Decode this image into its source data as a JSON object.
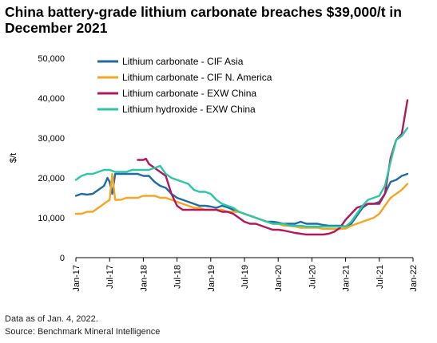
{
  "title": "China battery-grade lithium carbonate breaches $39,000/t in December 2021",
  "notes": {
    "date": "Data as of Jan. 4, 2022.",
    "source": "Source: Benchmark Mineral Intelligence"
  },
  "chart_data": {
    "type": "line",
    "ylabel": "$/t",
    "xlabel": "",
    "ylim": [
      0,
      50000
    ],
    "yticks": [
      0,
      10000,
      20000,
      30000,
      40000,
      50000
    ],
    "ytick_labels": [
      "0",
      "10,000",
      "20,000",
      "30,000",
      "40,000",
      "50,000"
    ],
    "xticks": [
      "2017-01",
      "2017-07",
      "2018-01",
      "2018-07",
      "2019-01",
      "2019-07",
      "2020-01",
      "2020-07",
      "2021-01",
      "2021-07",
      "2022-01"
    ],
    "xtick_labels": [
      "Jan-17",
      "Jul-17",
      "Jan-18",
      "Jul-18",
      "Jan-19",
      "Jul-19",
      "Jan-20",
      "Jul-20",
      "Jan-21",
      "Jul-21",
      "Jan-22"
    ],
    "xlim": [
      "2017-01",
      "2022-01"
    ],
    "grid": false,
    "legend": "top-left",
    "series": [
      {
        "name": "Lithium carbonate - CIF Asia",
        "color": "#1f6ba5",
        "points": [
          [
            "2017-01",
            15500
          ],
          [
            "2017-02",
            16000
          ],
          [
            "2017-03",
            15800
          ],
          [
            "2017-04",
            16000
          ],
          [
            "2017-05",
            17000
          ],
          [
            "2017-06",
            18000
          ],
          [
            "2017-06-20",
            20000
          ],
          [
            "2017-07",
            19000
          ],
          [
            "2017-07-15",
            16000
          ],
          [
            "2017-08",
            21000
          ],
          [
            "2017-09",
            21000
          ],
          [
            "2017-10",
            21000
          ],
          [
            "2017-11",
            21000
          ],
          [
            "2017-12",
            21000
          ],
          [
            "2018-01",
            20500
          ],
          [
            "2018-02",
            20500
          ],
          [
            "2018-03",
            19000
          ],
          [
            "2018-04",
            18000
          ],
          [
            "2018-05",
            17500
          ],
          [
            "2018-06",
            16000
          ],
          [
            "2018-07",
            15000
          ],
          [
            "2018-08",
            14500
          ],
          [
            "2018-09",
            14000
          ],
          [
            "2018-10",
            13500
          ],
          [
            "2018-11",
            13000
          ],
          [
            "2018-12",
            13000
          ],
          [
            "2019-01",
            12800
          ],
          [
            "2019-02",
            12500
          ],
          [
            "2019-03",
            13000
          ],
          [
            "2019-04",
            12600
          ],
          [
            "2019-05",
            12000
          ],
          [
            "2019-06",
            11500
          ],
          [
            "2019-07",
            11000
          ],
          [
            "2019-08",
            10500
          ],
          [
            "2019-09",
            10000
          ],
          [
            "2019-10",
            9500
          ],
          [
            "2019-11",
            9000
          ],
          [
            "2019-12",
            9000
          ],
          [
            "2020-01",
            8800
          ],
          [
            "2020-02",
            8500
          ],
          [
            "2020-03",
            8500
          ],
          [
            "2020-04",
            8500
          ],
          [
            "2020-05",
            9000
          ],
          [
            "2020-06",
            8500
          ],
          [
            "2020-07",
            8500
          ],
          [
            "2020-08",
            8500
          ],
          [
            "2020-09",
            8200
          ],
          [
            "2020-10",
            8000
          ],
          [
            "2020-11",
            8000
          ],
          [
            "2020-12",
            8000
          ],
          [
            "2021-01",
            7800
          ],
          [
            "2021-02",
            8500
          ],
          [
            "2021-03",
            10500
          ],
          [
            "2021-04",
            12500
          ],
          [
            "2021-05",
            13500
          ],
          [
            "2021-06",
            13500
          ],
          [
            "2021-07",
            14000
          ],
          [
            "2021-08",
            16000
          ],
          [
            "2021-09",
            19000
          ],
          [
            "2021-10",
            19500
          ],
          [
            "2021-11",
            20500
          ],
          [
            "2021-12",
            21000
          ]
        ]
      },
      {
        "name": "Lithium carbonate - CIF N. America",
        "color": "#f5a623",
        "points": [
          [
            "2017-01",
            11000
          ],
          [
            "2017-02",
            11000
          ],
          [
            "2017-03",
            11500
          ],
          [
            "2017-04",
            11500
          ],
          [
            "2017-05",
            12500
          ],
          [
            "2017-06",
            13500
          ],
          [
            "2017-07",
            14500
          ],
          [
            "2017-07-15",
            21000
          ],
          [
            "2017-08",
            14500
          ],
          [
            "2017-09",
            14500
          ],
          [
            "2017-10",
            15000
          ],
          [
            "2017-11",
            15000
          ],
          [
            "2017-12",
            15000
          ],
          [
            "2018-01",
            15500
          ],
          [
            "2018-02",
            15500
          ],
          [
            "2018-03",
            15500
          ],
          [
            "2018-04",
            15000
          ],
          [
            "2018-05",
            15000
          ],
          [
            "2018-06",
            14500
          ],
          [
            "2018-07",
            14000
          ],
          [
            "2018-08",
            13500
          ],
          [
            "2018-09",
            13000
          ],
          [
            "2018-10",
            12500
          ],
          [
            "2018-11",
            12500
          ],
          [
            "2018-12",
            12000
          ],
          [
            "2019-01",
            12000
          ],
          [
            "2019-02",
            12000
          ],
          [
            "2019-03",
            12000
          ],
          [
            "2019-04",
            11500
          ],
          [
            "2019-05",
            11500
          ],
          [
            "2019-06",
            11500
          ],
          [
            "2019-07",
            11000
          ],
          [
            "2019-08",
            10500
          ],
          [
            "2019-09",
            10000
          ],
          [
            "2019-10",
            9500
          ],
          [
            "2019-11",
            9000
          ],
          [
            "2019-12",
            8500
          ],
          [
            "2020-01",
            8500
          ],
          [
            "2020-02",
            8000
          ],
          [
            "2020-03",
            8000
          ],
          [
            "2020-04",
            7800
          ],
          [
            "2020-05",
            7500
          ],
          [
            "2020-06",
            7500
          ],
          [
            "2020-07",
            7500
          ],
          [
            "2020-08",
            7500
          ],
          [
            "2020-09",
            7200
          ],
          [
            "2020-10",
            7200
          ],
          [
            "2020-11",
            7200
          ],
          [
            "2020-12",
            7200
          ],
          [
            "2021-01",
            7300
          ],
          [
            "2021-02",
            8000
          ],
          [
            "2021-03",
            8500
          ],
          [
            "2021-04",
            9000
          ],
          [
            "2021-05",
            9500
          ],
          [
            "2021-06",
            10000
          ],
          [
            "2021-07",
            11000
          ],
          [
            "2021-08",
            13000
          ],
          [
            "2021-09",
            15000
          ],
          [
            "2021-10",
            16000
          ],
          [
            "2021-11",
            17000
          ],
          [
            "2021-12",
            18500
          ]
        ]
      },
      {
        "name": "Lithium carbonate - EXW China",
        "color": "#b5175d",
        "points": [
          [
            "2017-12",
            24500
          ],
          [
            "2018-01",
            24500
          ],
          [
            "2018-01-15",
            24800
          ],
          [
            "2018-02",
            23500
          ],
          [
            "2018-03",
            22500
          ],
          [
            "2018-04",
            21500
          ],
          [
            "2018-05",
            20500
          ],
          [
            "2018-06",
            16000
          ],
          [
            "2018-07",
            13000
          ],
          [
            "2018-08",
            12000
          ],
          [
            "2018-09",
            12000
          ],
          [
            "2018-10",
            12000
          ],
          [
            "2018-11",
            12000
          ],
          [
            "2018-12",
            12000
          ],
          [
            "2019-01",
            12000
          ],
          [
            "2019-02",
            12000
          ],
          [
            "2019-03",
            11500
          ],
          [
            "2019-04",
            11500
          ],
          [
            "2019-05",
            11000
          ],
          [
            "2019-06",
            10000
          ],
          [
            "2019-07",
            9000
          ],
          [
            "2019-08",
            8500
          ],
          [
            "2019-09",
            8500
          ],
          [
            "2019-10",
            8000
          ],
          [
            "2019-11",
            7500
          ],
          [
            "2019-12",
            7000
          ],
          [
            "2020-01",
            7000
          ],
          [
            "2020-02",
            6800
          ],
          [
            "2020-03",
            6500
          ],
          [
            "2020-04",
            6200
          ],
          [
            "2020-05",
            6000
          ],
          [
            "2020-06",
            5800
          ],
          [
            "2020-07",
            5800
          ],
          [
            "2020-08",
            5800
          ],
          [
            "2020-09",
            5800
          ],
          [
            "2020-10",
            6000
          ],
          [
            "2020-11",
            6500
          ],
          [
            "2020-12",
            7500
          ],
          [
            "2021-01",
            9500
          ],
          [
            "2021-02",
            11000
          ],
          [
            "2021-03",
            12500
          ],
          [
            "2021-04",
            13000
          ],
          [
            "2021-05",
            13500
          ],
          [
            "2021-06",
            13500
          ],
          [
            "2021-07",
            13500
          ],
          [
            "2021-08",
            16000
          ],
          [
            "2021-09",
            25000
          ],
          [
            "2021-10",
            29500
          ],
          [
            "2021-11",
            31000
          ],
          [
            "2021-12",
            39500
          ]
        ]
      },
      {
        "name": "Lithium hydroxide - EXW China",
        "color": "#2dc7a6",
        "points": [
          [
            "2017-01",
            19500
          ],
          [
            "2017-02",
            20500
          ],
          [
            "2017-03",
            21000
          ],
          [
            "2017-04",
            21000
          ],
          [
            "2017-05",
            21500
          ],
          [
            "2017-06",
            22000
          ],
          [
            "2017-07",
            22000
          ],
          [
            "2017-08",
            21500
          ],
          [
            "2017-09",
            21500
          ],
          [
            "2017-10",
            21500
          ],
          [
            "2017-11",
            22000
          ],
          [
            "2017-12",
            22000
          ],
          [
            "2018-01",
            22000
          ],
          [
            "2018-02",
            22000
          ],
          [
            "2018-03",
            22500
          ],
          [
            "2018-04",
            23000
          ],
          [
            "2018-05",
            21000
          ],
          [
            "2018-06",
            20000
          ],
          [
            "2018-07",
            19500
          ],
          [
            "2018-08",
            19000
          ],
          [
            "2018-09",
            18500
          ],
          [
            "2018-10",
            17000
          ],
          [
            "2018-11",
            16500
          ],
          [
            "2018-12",
            16500
          ],
          [
            "2019-01",
            16000
          ],
          [
            "2019-02",
            14500
          ],
          [
            "2019-03",
            13500
          ],
          [
            "2019-04",
            13000
          ],
          [
            "2019-05",
            12500
          ],
          [
            "2019-06",
            11500
          ],
          [
            "2019-07",
            11000
          ],
          [
            "2019-08",
            10500
          ],
          [
            "2019-09",
            10000
          ],
          [
            "2019-10",
            9500
          ],
          [
            "2019-11",
            9000
          ],
          [
            "2019-12",
            8500
          ],
          [
            "2020-01",
            8500
          ],
          [
            "2020-02",
            8500
          ],
          [
            "2020-03",
            8000
          ],
          [
            "2020-04",
            8000
          ],
          [
            "2020-05",
            8000
          ],
          [
            "2020-06",
            7800
          ],
          [
            "2020-07",
            7800
          ],
          [
            "2020-08",
            7800
          ],
          [
            "2020-09",
            7800
          ],
          [
            "2020-10",
            7800
          ],
          [
            "2020-11",
            7800
          ],
          [
            "2020-12",
            7800
          ],
          [
            "2021-01",
            7800
          ],
          [
            "2021-02",
            9000
          ],
          [
            "2021-03",
            11000
          ],
          [
            "2021-04",
            13000
          ],
          [
            "2021-05",
            14500
          ],
          [
            "2021-06",
            15000
          ],
          [
            "2021-07",
            15500
          ],
          [
            "2021-08",
            18000
          ],
          [
            "2021-09",
            24000
          ],
          [
            "2021-10",
            29500
          ],
          [
            "2021-11",
            30500
          ],
          [
            "2021-12",
            32500
          ]
        ]
      }
    ]
  }
}
